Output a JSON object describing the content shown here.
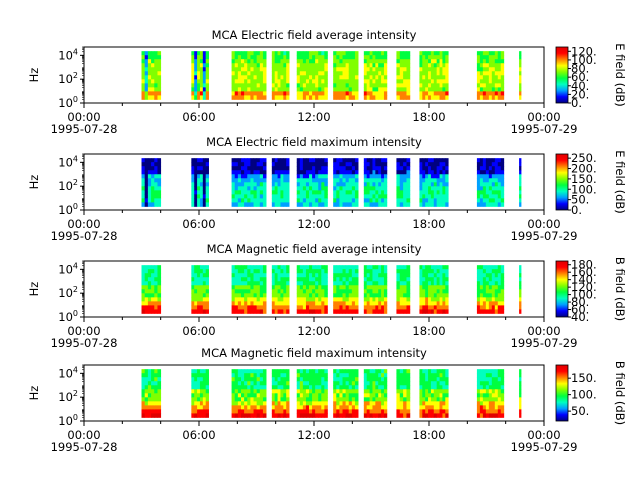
{
  "chart_data": [
    {
      "type": "heatmap",
      "title": "MCA  Electric field average intensity",
      "ylabel": "Hz",
      "yscale": "log",
      "ylim": [
        1,
        50000
      ],
      "y_ticks": [
        {
          "base": "10",
          "exp": "0"
        },
        {
          "base": "10",
          "exp": "2"
        },
        {
          "base": "10",
          "exp": "4"
        }
      ],
      "x_range": [
        "1995-07-28T00:00",
        "1995-07-29T00:00"
      ],
      "x_ticks": [
        {
          "time": "00:00",
          "date": "1995-07-28"
        },
        {
          "time": "06:00",
          "date": ""
        },
        {
          "time": "12:00",
          "date": ""
        },
        {
          "time": "18:00",
          "date": ""
        },
        {
          "time": "00:00",
          "date": "1995-07-29"
        }
      ],
      "colorbar": {
        "label": "E field (dB)",
        "ticks": [
          "0.",
          "20.",
          "40.",
          "60.",
          "80.",
          "100.",
          "120."
        ],
        "range": [
          0,
          130
        ]
      }
    },
    {
      "type": "heatmap",
      "title": "MCA  Electric field maximum intensity",
      "ylabel": "Hz",
      "yscale": "log",
      "ylim": [
        1,
        50000
      ],
      "y_ticks": [
        {
          "base": "10",
          "exp": "0"
        },
        {
          "base": "10",
          "exp": "2"
        },
        {
          "base": "10",
          "exp": "4"
        }
      ],
      "x_range": [
        "1995-07-28T00:00",
        "1995-07-29T00:00"
      ],
      "x_ticks": [
        {
          "time": "00:00",
          "date": "1995-07-28"
        },
        {
          "time": "06:00",
          "date": ""
        },
        {
          "time": "12:00",
          "date": ""
        },
        {
          "time": "18:00",
          "date": ""
        },
        {
          "time": "00:00",
          "date": "1995-07-29"
        }
      ],
      "colorbar": {
        "label": "E field (dB)",
        "ticks": [
          "0.",
          "50.",
          "100.",
          "150.",
          "200.",
          "250."
        ],
        "range": [
          0,
          270
        ]
      }
    },
    {
      "type": "heatmap",
      "title": "MCA  Magnetic field average intensity",
      "ylabel": "Hz",
      "yscale": "log",
      "ylim": [
        1,
        50000
      ],
      "y_ticks": [
        {
          "base": "10",
          "exp": "0"
        },
        {
          "base": "10",
          "exp": "2"
        },
        {
          "base": "10",
          "exp": "4"
        }
      ],
      "x_range": [
        "1995-07-28T00:00",
        "1995-07-29T00:00"
      ],
      "x_ticks": [
        {
          "time": "00:00",
          "date": "1995-07-28"
        },
        {
          "time": "06:00",
          "date": ""
        },
        {
          "time": "12:00",
          "date": ""
        },
        {
          "time": "18:00",
          "date": ""
        },
        {
          "time": "00:00",
          "date": "1995-07-29"
        }
      ],
      "colorbar": {
        "label": "B field (dB)",
        "ticks": [
          "40.",
          "60.",
          "80.",
          "100.",
          "120.",
          "140.",
          "160.",
          "180."
        ],
        "range": [
          40,
          190
        ]
      }
    },
    {
      "type": "heatmap",
      "title": "MCA  Magnetic field maximum intensity",
      "ylabel": "Hz",
      "yscale": "log",
      "ylim": [
        1,
        50000
      ],
      "y_ticks": [
        {
          "base": "10",
          "exp": "0"
        },
        {
          "base": "10",
          "exp": "2"
        },
        {
          "base": "10",
          "exp": "4"
        }
      ],
      "x_range": [
        "1995-07-28T00:00",
        "1995-07-29T00:00"
      ],
      "x_ticks": [
        {
          "time": "00:00",
          "date": "1995-07-28"
        },
        {
          "time": "06:00",
          "date": ""
        },
        {
          "time": "12:00",
          "date": ""
        },
        {
          "time": "18:00",
          "date": ""
        },
        {
          "time": "00:00",
          "date": "1995-07-29"
        }
      ],
      "colorbar": {
        "label": "B field (dB)",
        "ticks": [
          "50.",
          "100.",
          "150."
        ],
        "range": [
          20,
          190
        ]
      }
    }
  ],
  "data_intervals_hours": [
    [
      3.0,
      4.0
    ],
    [
      5.6,
      6.5
    ],
    [
      7.7,
      9.5
    ],
    [
      9.8,
      10.7
    ],
    [
      11.1,
      12.7
    ],
    [
      13.0,
      14.3
    ],
    [
      14.6,
      15.8
    ],
    [
      16.3,
      17.0
    ],
    [
      17.5,
      19.0
    ],
    [
      20.5,
      21.9
    ],
    [
      22.7,
      22.8
    ]
  ],
  "colors": {
    "background": "#ffffff",
    "colormap": [
      "#000080",
      "#0000ff",
      "#00a0ff",
      "#00ffc0",
      "#00ff40",
      "#80ff00",
      "#ffff00",
      "#ff8000",
      "#ff0000",
      "#e00000"
    ]
  }
}
